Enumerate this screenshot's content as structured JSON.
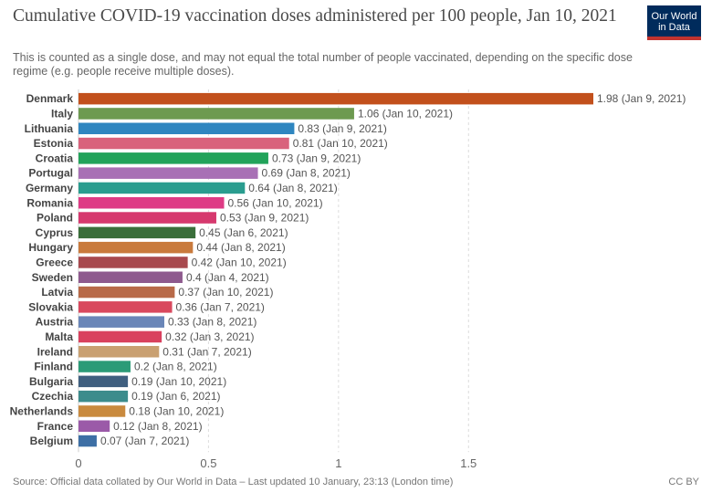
{
  "header": {
    "title": "Cumulative COVID-19 vaccination doses administered per 100 people, Jan 10, 2021",
    "subtitle": "This is counted as a single dose, and may not equal the total number of people vaccinated, depending on the specific dose regime (e.g. people receive multiple doses).",
    "logo_line1": "Our World",
    "logo_line2": "in Data"
  },
  "footer": {
    "source": "Source: Official data collated by Our World in Data – Last updated 10 January, 23:13 (London time)",
    "license": "CC BY"
  },
  "chart_data": {
    "type": "bar",
    "orientation": "horizontal",
    "xlim": [
      0,
      1.98
    ],
    "xticks": [
      "0",
      "0.5",
      "1",
      "1.5"
    ],
    "grid": "vertical dashed",
    "categories": [
      "Denmark",
      "Italy",
      "Lithuania",
      "Estonia",
      "Croatia",
      "Portugal",
      "Germany",
      "Romania",
      "Poland",
      "Cyprus",
      "Hungary",
      "Greece",
      "Sweden",
      "Latvia",
      "Slovakia",
      "Austria",
      "Malta",
      "Ireland",
      "Finland",
      "Bulgaria",
      "Czechia",
      "Netherlands",
      "France",
      "Belgium"
    ],
    "values": [
      1.98,
      1.06,
      0.83,
      0.81,
      0.73,
      0.69,
      0.64,
      0.56,
      0.53,
      0.45,
      0.44,
      0.42,
      0.4,
      0.37,
      0.36,
      0.33,
      0.32,
      0.31,
      0.2,
      0.19,
      0.19,
      0.18,
      0.12,
      0.07
    ],
    "labels": [
      "1.98 (Jan 9, 2021)",
      "1.06 (Jan 10, 2021)",
      "0.83 (Jan 9, 2021)",
      "0.81 (Jan 10, 2021)",
      "0.73 (Jan 9, 2021)",
      "0.69 (Jan 8, 2021)",
      "0.64 (Jan 8, 2021)",
      "0.56 (Jan 10, 2021)",
      "0.53 (Jan 9, 2021)",
      "0.45 (Jan 6, 2021)",
      "0.44 (Jan 8, 2021)",
      "0.42 (Jan 10, 2021)",
      "0.4 (Jan 4, 2021)",
      "0.37 (Jan 10, 2021)",
      "0.36 (Jan 7, 2021)",
      "0.33 (Jan 8, 2021)",
      "0.32 (Jan 3, 2021)",
      "0.31 (Jan 7, 2021)",
      "0.2 (Jan 8, 2021)",
      "0.19 (Jan 10, 2021)",
      "0.19 (Jan 6, 2021)",
      "0.18 (Jan 10, 2021)",
      "0.12 (Jan 8, 2021)",
      "0.07 (Jan 7, 2021)"
    ],
    "colors": [
      "#c2501c",
      "#6d9a50",
      "#2f86c0",
      "#d9627c",
      "#22a35a",
      "#a870b5",
      "#2a9d8f",
      "#de3b85",
      "#d6396e",
      "#3a6e3a",
      "#c97a3c",
      "#a8494e",
      "#8e5a8e",
      "#b86a48",
      "#d9495e",
      "#6a86b8",
      "#d9415e",
      "#c9a071",
      "#2b9b77",
      "#3f5f7f",
      "#3c8c8c",
      "#c98a3e",
      "#9b5aa8",
      "#3d6fa5"
    ]
  }
}
